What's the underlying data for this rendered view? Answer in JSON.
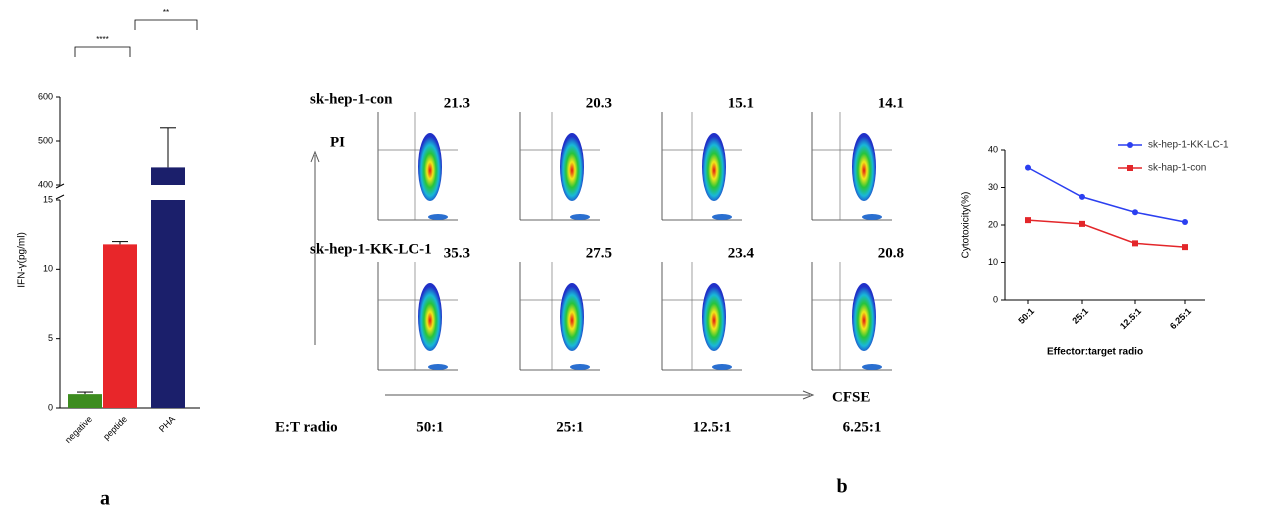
{
  "chart_data": [
    {
      "type": "bar",
      "y_label": "IFN-γ(pg/ml)",
      "categories": [
        "negative",
        "peptide",
        "PHA"
      ],
      "values": [
        1.0,
        11.8,
        440
      ],
      "errors": [
        0.15,
        0.2,
        90
      ],
      "colors": [
        "#3d8c1f",
        "#e8262a",
        "#1b1f6b"
      ],
      "ylim_segments": [
        [
          0,
          15
        ],
        [
          400,
          600
        ]
      ],
      "yticks": [
        0,
        5,
        10,
        15,
        400,
        500,
        600
      ],
      "annotations": [
        "****",
        "**"
      ]
    },
    {
      "type": "line",
      "x_label": "Effector:target radio",
      "y_label": "Cytotoxicity(%)",
      "categories": [
        "50:1",
        "25:1",
        "12.5:1",
        "6.25:1"
      ],
      "series": [
        {
          "name": "sk-hep-1-KK-LC-1",
          "color": "#2b3ff0",
          "values": [
            35.3,
            27.5,
            23.4,
            20.8
          ]
        },
        {
          "name": "sk-hap-1-con",
          "color": "#e3262a",
          "values": [
            21.3,
            20.3,
            15.1,
            14.1
          ]
        }
      ],
      "ylim": [
        0,
        40
      ],
      "yticks": [
        0,
        10,
        20,
        30,
        40
      ],
      "legend": "upper right"
    }
  ],
  "flow": {
    "rows": [
      {
        "label": "sk-hep-1-con",
        "values": [
          21.3,
          20.3,
          15.1,
          14.1
        ]
      },
      {
        "label": "sk-hep-1-KK-LC-1",
        "values": [
          35.3,
          27.5,
          23.4,
          20.8
        ]
      }
    ],
    "y_axis": "PI",
    "x_axis": "CFSE",
    "ratio_label": "E:T radio",
    "ratios": [
      "50:1",
      "25:1",
      "12.5:1",
      "6.25:1"
    ]
  },
  "panel_labels": [
    "a",
    "b"
  ]
}
